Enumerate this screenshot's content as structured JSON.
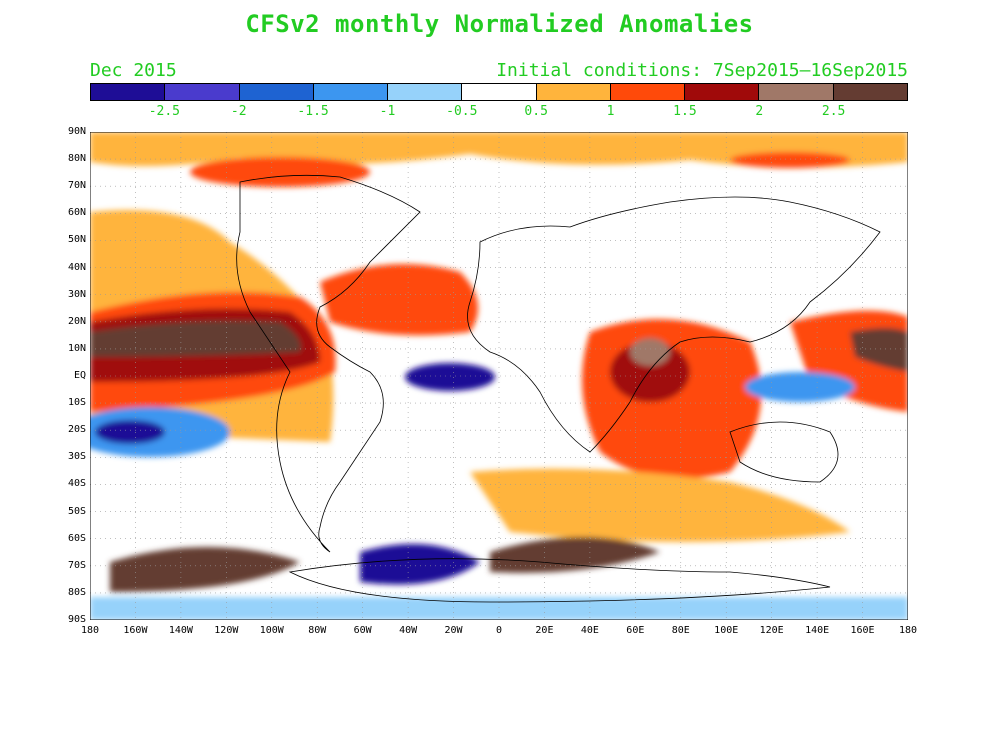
{
  "title": "CFSv2 monthly Normalized Anomalies",
  "month_label": "Dec 2015",
  "initial_conditions": "Initial conditions: 7Sep2015–16Sep2015",
  "colorbar": {
    "colors": [
      "#1e0d96",
      "#4a3bcd",
      "#1e63d2",
      "#3c96f0",
      "#96d2fa",
      "#ffffff",
      "#ffb43c",
      "#ff4a0a",
      "#a00a0a",
      "#a07868",
      "#643c32"
    ],
    "labels": [
      "-2.5",
      "-2",
      "-1.5",
      "-1",
      "-0.5",
      "0.5",
      "1",
      "1.5",
      "2",
      "2.5"
    ]
  },
  "map": {
    "lat_labels": [
      "90N",
      "80N",
      "70N",
      "60N",
      "50N",
      "40N",
      "30N",
      "20N",
      "10N",
      "EQ",
      "10S",
      "20S",
      "30S",
      "40S",
      "50S",
      "60S",
      "70S",
      "80S",
      "90S"
    ],
    "lon_labels": [
      "180",
      "160W",
      "140W",
      "120W",
      "100W",
      "80W",
      "60W",
      "40W",
      "20W",
      "0",
      "20E",
      "40E",
      "60E",
      "80E",
      "100E",
      "120E",
      "140E",
      "160E",
      "180"
    ]
  }
}
